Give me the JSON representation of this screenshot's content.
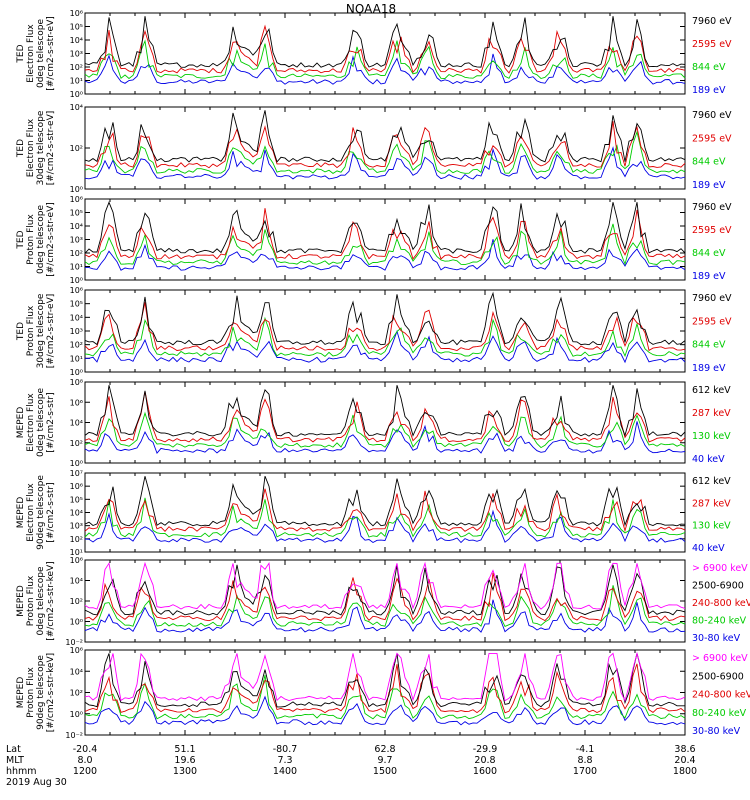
{
  "chart_data": {
    "type": "line",
    "title": "NOAA18",
    "colors": {
      "black": "#000000",
      "red": "#e00000",
      "green": "#00cc00",
      "blue": "#0000e6",
      "magenta": "#ff00ff"
    },
    "x_axis": {
      "rows": [
        {
          "label": "Lat",
          "values": [
            "-20.4",
            "51.1",
            "-80.7",
            "62.8",
            "-29.9",
            "-4.1",
            "38.6"
          ]
        },
        {
          "label": "MLT",
          "values": [
            "8.0",
            "19.6",
            "7.3",
            "9.7",
            "20.8",
            "8.8",
            "20.4"
          ]
        },
        {
          "label": "hhmm",
          "values": [
            "1200",
            "1300",
            "1400",
            "1500",
            "1600",
            "1700",
            "1800"
          ]
        }
      ],
      "date": "2019 Aug 30",
      "time_range": [
        "1200",
        "1800"
      ]
    },
    "panels": [
      {
        "ylabel": [
          "TED",
          "Electron Flux",
          "0deg telescope",
          "[#/cm2-s-str-eV]"
        ],
        "yticks": [
          "10⁰",
          "10¹",
          "10²",
          "10³",
          "10⁴",
          "10⁵",
          "10⁶"
        ],
        "series": [
          {
            "name": "7960 eV",
            "color": "black"
          },
          {
            "name": "2595 eV",
            "color": "red"
          },
          {
            "name": "844 eV",
            "color": "green"
          },
          {
            "name": "189 eV",
            "color": "blue"
          }
        ]
      },
      {
        "ylabel": [
          "TED",
          "Electron Flux",
          "30deg telescope",
          "[#/cm2-s-str-eV]"
        ],
        "yticks": [
          "10⁰",
          "10²",
          "10⁴"
        ],
        "series": [
          {
            "name": "7960 eV",
            "color": "black"
          },
          {
            "name": "2595 eV",
            "color": "red"
          },
          {
            "name": "844 eV",
            "color": "green"
          },
          {
            "name": "189 eV",
            "color": "blue"
          }
        ]
      },
      {
        "ylabel": [
          "TED",
          "Proton Flux",
          "0deg telescope",
          "[#/cm2-s-str-eV]"
        ],
        "yticks": [
          "10⁰",
          "10¹",
          "10²",
          "10³",
          "10⁴",
          "10⁵",
          "10⁶"
        ],
        "series": [
          {
            "name": "7960 eV",
            "color": "black"
          },
          {
            "name": "2595 eV",
            "color": "red"
          },
          {
            "name": "844 eV",
            "color": "green"
          },
          {
            "name": "189 eV",
            "color": "blue"
          }
        ]
      },
      {
        "ylabel": [
          "TED",
          "Proton Flux",
          "30deg telescope",
          "[#/cm2-s-str-eV]"
        ],
        "yticks": [
          "10⁰",
          "10¹",
          "10²",
          "10³",
          "10⁴",
          "10⁵",
          "10⁶"
        ],
        "series": [
          {
            "name": "7960 eV",
            "color": "black"
          },
          {
            "name": "2595 eV",
            "color": "red"
          },
          {
            "name": "844 eV",
            "color": "green"
          },
          {
            "name": "189 eV",
            "color": "blue"
          }
        ]
      },
      {
        "ylabel": [
          "MEPED",
          "Electron Flux",
          "0deg telescope",
          "[#/cm2-s-str]"
        ],
        "yticks": [
          "10⁰",
          "10²",
          "10⁴",
          "10⁶",
          "10⁸"
        ],
        "series": [
          {
            "name": "612 keV",
            "color": "black"
          },
          {
            "name": "287 keV",
            "color": "red"
          },
          {
            "name": "130 keV",
            "color": "green"
          },
          {
            "name": "40 keV",
            "color": "blue"
          }
        ]
      },
      {
        "ylabel": [
          "MEPED",
          "Electron Flux",
          "90deg telescope",
          "[#/cm2-s-str]"
        ],
        "yticks": [
          "10¹",
          "10²",
          "10³",
          "10⁴",
          "10⁵",
          "10⁶",
          "10⁷"
        ],
        "series": [
          {
            "name": "612 keV",
            "color": "black"
          },
          {
            "name": "287 keV",
            "color": "red"
          },
          {
            "name": "130 keV",
            "color": "green"
          },
          {
            "name": "40 keV",
            "color": "blue"
          }
        ]
      },
      {
        "ylabel": [
          "MEPED",
          "Proton Flux",
          "0deg telescope",
          "[#/cm2-s-str-keV]"
        ],
        "yticks": [
          "10⁻²",
          "10⁰",
          "10²",
          "10⁴",
          "10⁶"
        ],
        "series": [
          {
            "name": "> 6900 keV",
            "color": "magenta"
          },
          {
            "name": "2500-6900",
            "color": "black"
          },
          {
            "name": "240-800 keV",
            "color": "red"
          },
          {
            "name": "80-240 keV",
            "color": "green"
          },
          {
            "name": "30-80 keV",
            "color": "blue"
          }
        ]
      },
      {
        "ylabel": [
          "MEPED",
          "Proton Flux",
          "90deg telescope",
          "[#/cm2-s-str-keV]"
        ],
        "yticks": [
          "10⁻²",
          "10⁰",
          "10²",
          "10⁴",
          "10⁶"
        ],
        "series": [
          {
            "name": "> 6900 keV",
            "color": "magenta"
          },
          {
            "name": "2500-6900",
            "color": "black"
          },
          {
            "name": "240-800 keV",
            "color": "red"
          },
          {
            "name": "80-240 keV",
            "color": "green"
          },
          {
            "name": "30-80 keV",
            "color": "blue"
          }
        ]
      }
    ]
  }
}
